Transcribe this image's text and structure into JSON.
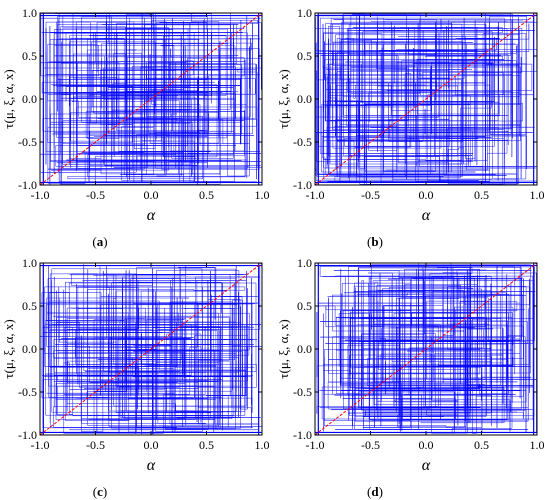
{
  "chart_data": [
    {
      "type": "line",
      "panel_label": "(a)",
      "xlabel": "α",
      "ylabel": "τ(μ, ξ, α, x)",
      "xlim": [
        -1.0,
        1.0
      ],
      "ylim": [
        -1.0,
        1.0
      ],
      "xticks": [
        "-1.0",
        "-0.5",
        "0.0",
        "0.5",
        "1.0"
      ],
      "yticks": [
        "-1.0",
        "-0.5",
        "0.0",
        "0.5",
        "1.0"
      ],
      "series": [
        {
          "style": "dense-random",
          "color": "#0000ff"
        },
        {
          "style": "diagonal",
          "color": "#ff0000",
          "x": [
            -1.0,
            1.0
          ],
          "y": [
            -1.0,
            1.0
          ]
        }
      ],
      "seed": 11
    },
    {
      "type": "line",
      "panel_label": "(b)",
      "xlabel": "α",
      "ylabel": "τ(μ, ξ, α, x)",
      "xlim": [
        -1.0,
        1.0
      ],
      "ylim": [
        -1.0,
        1.0
      ],
      "xticks": [
        "-1.0",
        "-0.5",
        "0.0",
        "0.5",
        "1.0"
      ],
      "yticks": [
        "-1.0",
        "-0.5",
        "0.0",
        "0.5",
        "1.0"
      ],
      "series": [
        {
          "style": "dense-random",
          "color": "#0000ff"
        },
        {
          "style": "diagonal",
          "color": "#ff0000",
          "x": [
            -1.0,
            1.0
          ],
          "y": [
            -1.0,
            1.0
          ]
        }
      ],
      "seed": 23
    },
    {
      "type": "line",
      "panel_label": "(c)",
      "xlabel": "α",
      "ylabel": "τ(μ, ξ, α, x)",
      "xlim": [
        -1.0,
        1.0
      ],
      "ylim": [
        -1.0,
        1.0
      ],
      "xticks": [
        "-1.0",
        "-0.5",
        "0.0",
        "0.5",
        "1.0"
      ],
      "yticks": [
        "-1.0",
        "-0.5",
        "0.0",
        "0.5",
        "1.0"
      ],
      "series": [
        {
          "style": "dense-random",
          "color": "#0000ff"
        },
        {
          "style": "diagonal",
          "color": "#ff0000",
          "x": [
            -1.0,
            1.0
          ],
          "y": [
            -1.0,
            1.0
          ]
        }
      ],
      "seed": 37
    },
    {
      "type": "line",
      "panel_label": "(d)",
      "xlabel": "α",
      "ylabel": "τ(μ, ξ, α, x)",
      "xlim": [
        -1.0,
        1.0
      ],
      "ylim": [
        -1.0,
        1.0
      ],
      "xticks": [
        "-1.0",
        "-0.5",
        "0.0",
        "0.5",
        "1.0"
      ],
      "yticks": [
        "-1.0",
        "-0.5",
        "0.0",
        "0.5",
        "1.0"
      ],
      "series": [
        {
          "style": "dense-random",
          "color": "#0000ff"
        },
        {
          "style": "diagonal",
          "color": "#ff0000",
          "x": [
            -1.0,
            1.0
          ],
          "y": [
            -1.0,
            1.0
          ]
        }
      ],
      "seed": 53
    }
  ]
}
